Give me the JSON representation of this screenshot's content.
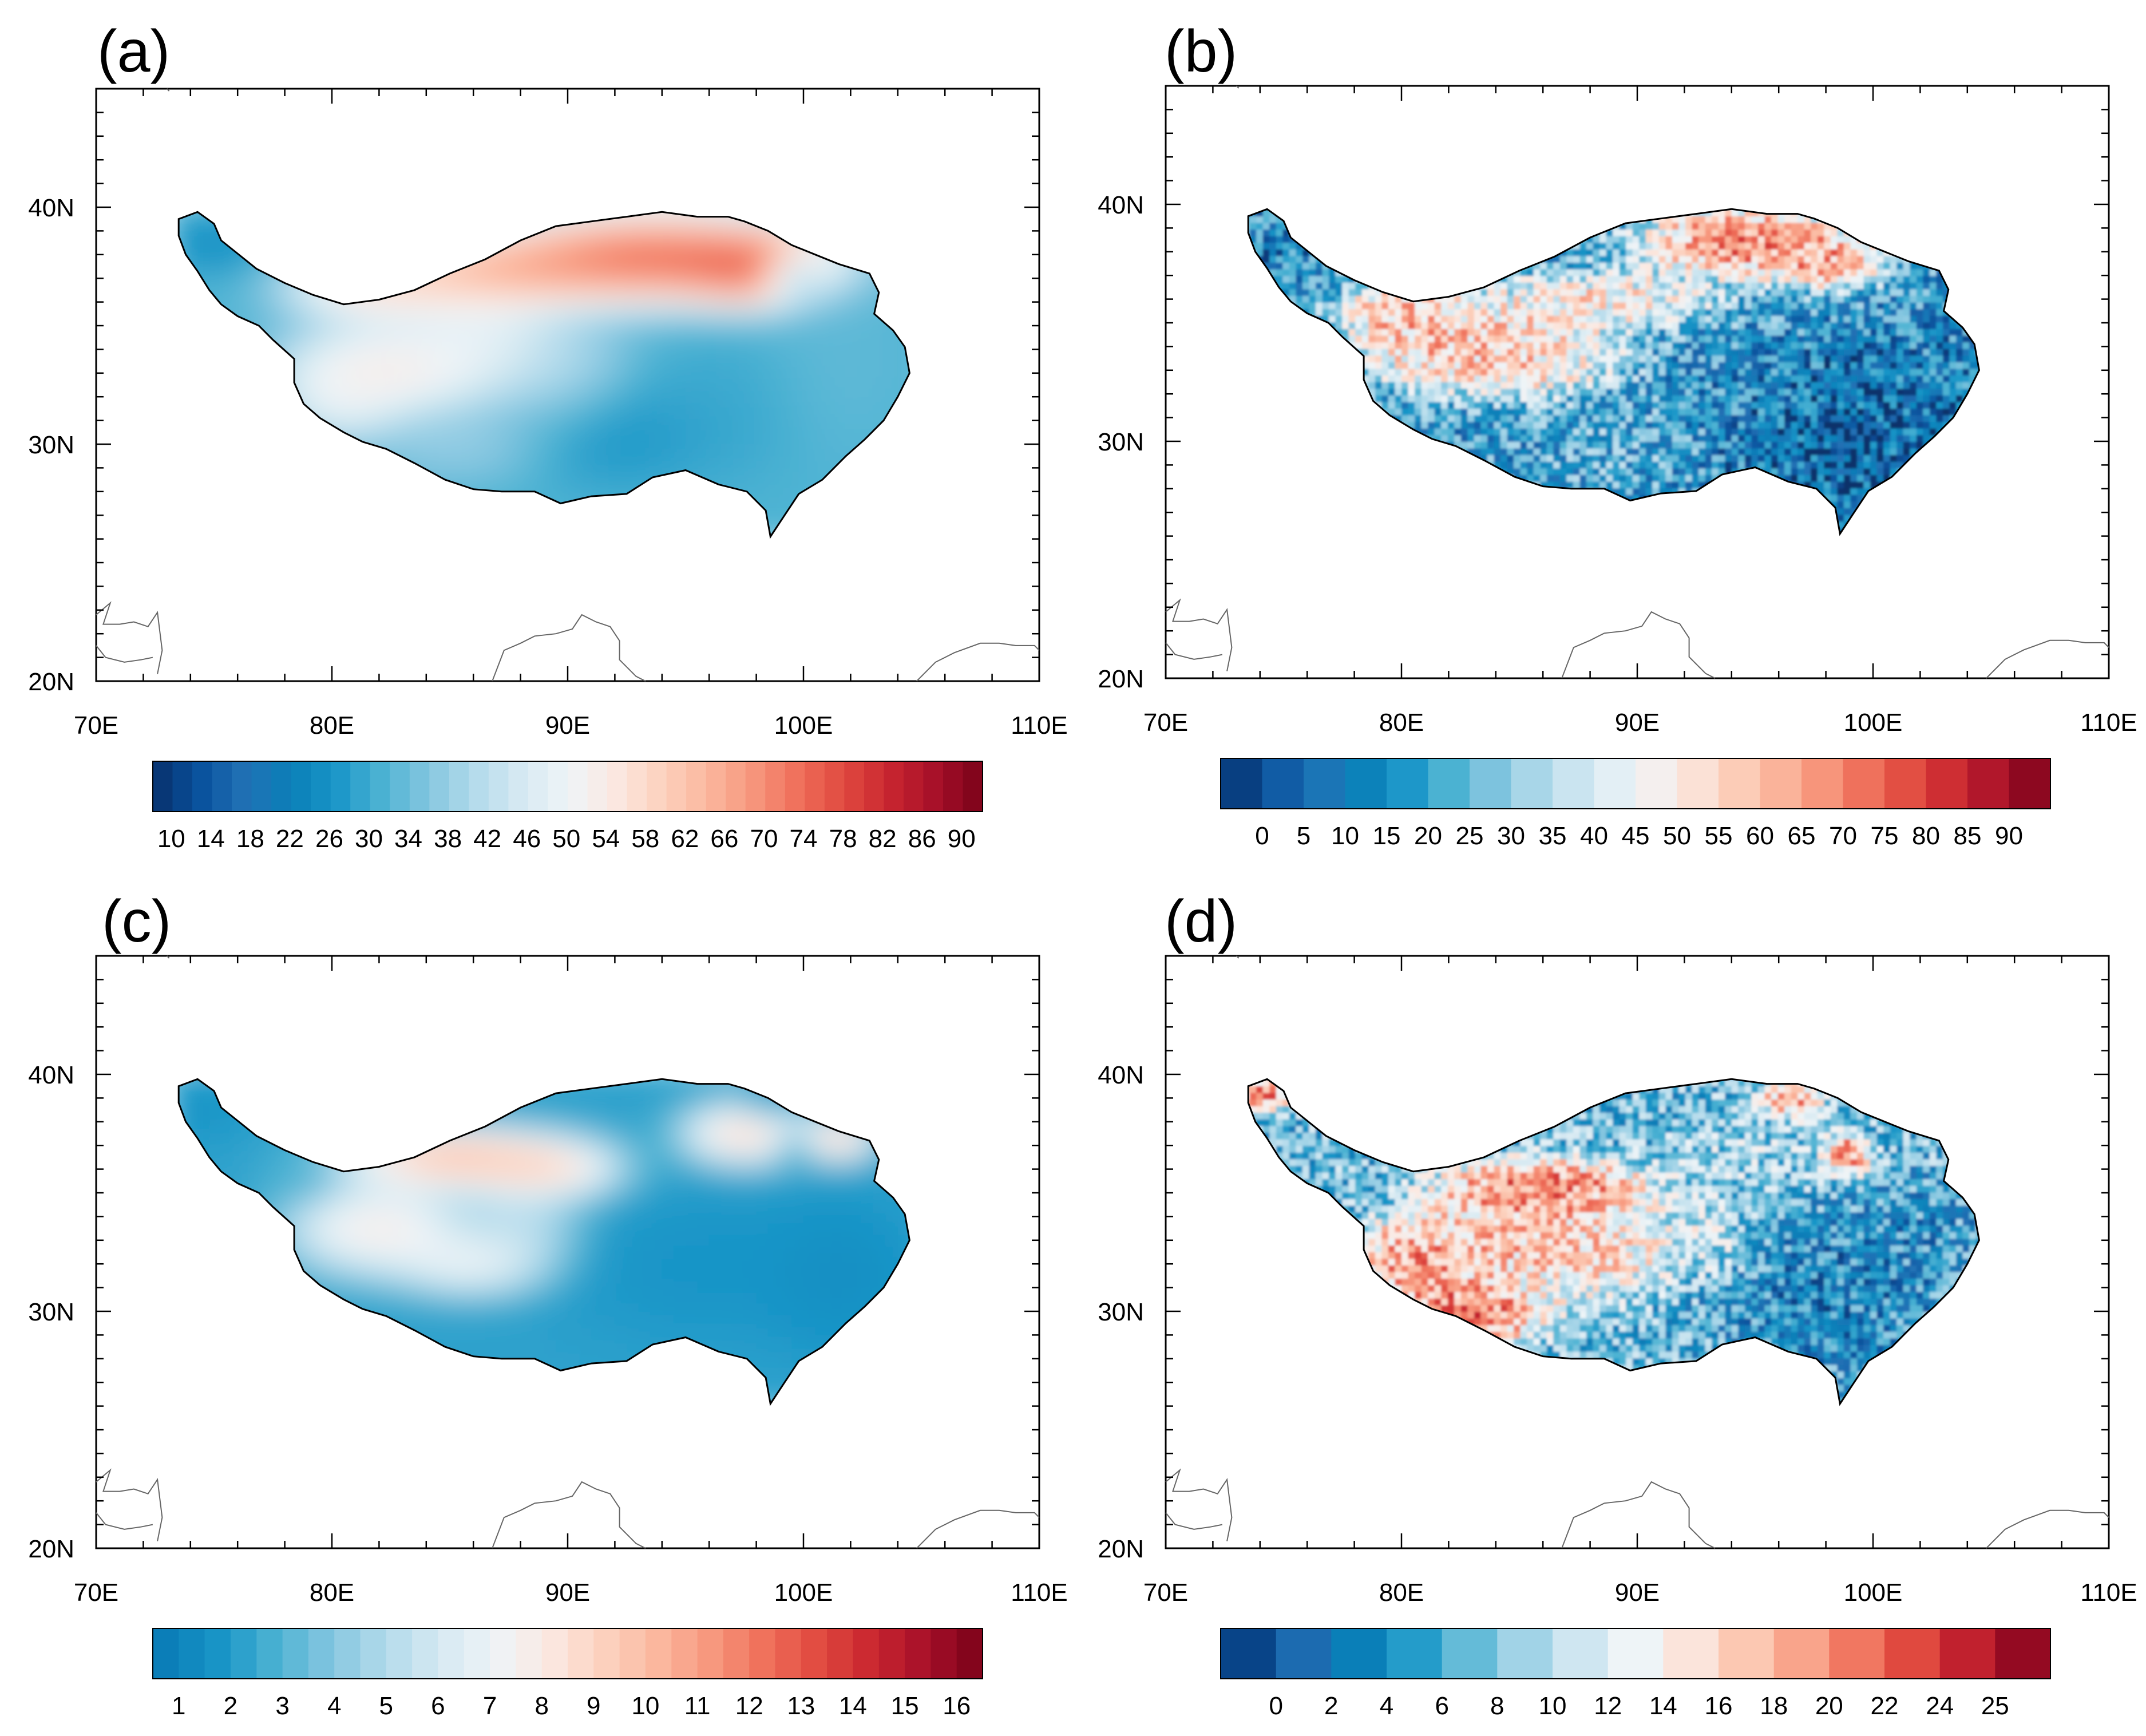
{
  "figure": {
    "lon_ticks": [
      "70E",
      "80E",
      "90E",
      "100E",
      "110E"
    ],
    "lat_ticks": [
      "20N",
      "30N",
      "40N"
    ],
    "lon_range": [
      70,
      110
    ],
    "lat_range": [
      20,
      45
    ]
  },
  "panels": [
    {
      "id": "a",
      "label": "(a)",
      "style": "smooth",
      "colorbar": {
        "labels": [
          "10",
          "14",
          "18",
          "22",
          "26",
          "30",
          "34",
          "38",
          "42",
          "46",
          "50",
          "54",
          "58",
          "62",
          "66",
          "70",
          "74",
          "78",
          "82",
          "86",
          "90"
        ],
        "n_boxes": 42,
        "palette": "blue-white-red"
      }
    },
    {
      "id": "b",
      "label": "(b)",
      "style": "pixel",
      "colorbar": {
        "labels": [
          "0",
          "5",
          "10",
          "15",
          "20",
          "25",
          "30",
          "35",
          "40",
          "45",
          "50",
          "55",
          "60",
          "65",
          "70",
          "75",
          "80",
          "85",
          "90"
        ],
        "n_boxes": 20,
        "palette": "blue-white-red"
      }
    },
    {
      "id": "c",
      "label": "(c)",
      "style": "smooth",
      "colorbar": {
        "labels": [
          "1",
          "2",
          "3",
          "4",
          "5",
          "6",
          "7",
          "8",
          "9",
          "10",
          "11",
          "12",
          "13",
          "14",
          "15",
          "16"
        ],
        "n_boxes": 32,
        "palette": "blue-white-red-light"
      }
    },
    {
      "id": "d",
      "label": "(d)",
      "style": "pixel",
      "colorbar": {
        "labels": [
          "0",
          "2",
          "4",
          "6",
          "8",
          "10",
          "12",
          "14",
          "16",
          "18",
          "20",
          "22",
          "24",
          "25"
        ],
        "n_boxes": 15,
        "palette": "blue-white-red"
      }
    }
  ],
  "colors": {
    "diverging": [
      "#08306b",
      "#08519c",
      "#2171b5",
      "#0a7fb8",
      "#1a96c8",
      "#4eb3d3",
      "#85c6e0",
      "#b3dbeb",
      "#d6e9f2",
      "#eef4f7",
      "#fbe9e2",
      "#fcd2bf",
      "#fbb89f",
      "#f7977d",
      "#ef6f5a",
      "#e0493f",
      "#c8252f",
      "#a50f29",
      "#7a0218"
    ],
    "outline": "#000000",
    "grey_line": "#666666"
  }
}
